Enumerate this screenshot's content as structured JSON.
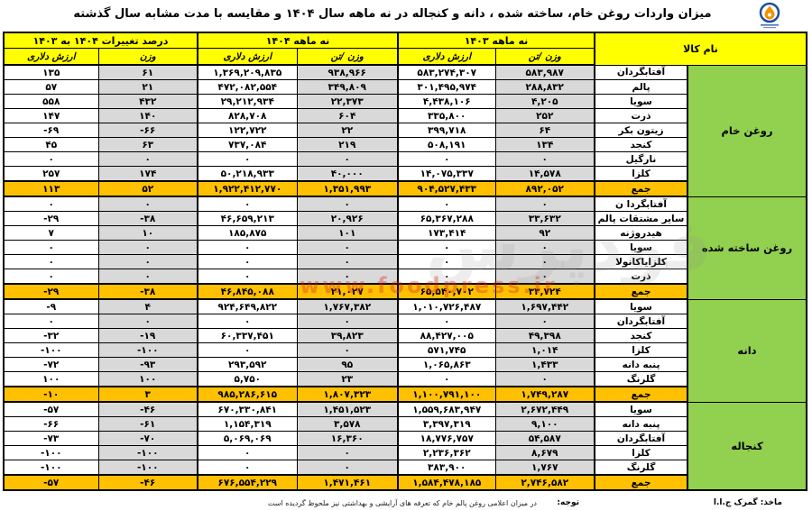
{
  "title": "میزان واردات روغن خام، ساخته شده ، دانه و کنجاله در نه ماهه سال ۱۴۰۴ و مقایسه با مدت مشابه سال گذشته",
  "watermark": {
    "word": "فودپرس",
    "url": "www.foodpress.ir"
  },
  "table": {
    "header": {
      "name_col": "نام کالا",
      "groups": [
        {
          "label": "نه ماهه ۱۴۰۳",
          "sub": [
            "وزن /تن",
            "ارزش دلاری"
          ]
        },
        {
          "label": "نه ماهه ۱۴۰۴",
          "sub": [
            "وزن /تن",
            "ارزش دلاری"
          ]
        },
        {
          "label": "درصد تغییرات ۱۴۰۴ به ۱۴۰۳",
          "sub": [
            "وزن",
            "ارزش دلاری"
          ]
        }
      ]
    },
    "columns_meaning": [
      "وزن تن ۱۴۰۳",
      "ارزش دلاری ۱۴۰۳",
      "وزن تن ۱۴۰۴",
      "ارزش دلاری ۱۴۰۴",
      "درصد تغییرات وزن",
      "درصد تغییرات ارزش دلاری"
    ],
    "groups": [
      {
        "category": "روغن خام",
        "rows": [
          {
            "name": "آفتابگردان",
            "cells": [
              "۵۸۳,۹۸۷",
              "۵۸۳,۲۷۴,۳۰۷",
              "۹۳۸,۹۶۶",
              "۱,۳۶۹,۲۰۹,۸۳۵",
              "۶۱",
              "۱۳۵"
            ]
          },
          {
            "name": "پالم",
            "cells": [
              "۲۸۸,۸۳۲",
              "۳۰۱,۴۹۵,۹۷۴",
              "۳۴۹,۸۰۹",
              "۴۷۲,۰۸۲,۵۵۴",
              "۲۱",
              "۵۷"
            ]
          },
          {
            "name": "سویا",
            "cells": [
              "۴,۲۰۵",
              "۴,۴۳۸,۱۰۶",
              "۲۲,۳۷۳",
              "۲۹,۲۱۲,۹۳۴",
              "۴۳۲",
              "۵۵۸"
            ]
          },
          {
            "name": "ذرت",
            "cells": [
              "۲۵۲",
              "۳۳۵,۸۰۰",
              "۶۰۴",
              "۸۲۸,۷۰۸",
              "۱۴۰",
              "۱۴۷"
            ]
          },
          {
            "name": "زیتون بکر",
            "cells": [
              "۶۴",
              "۳۹۹,۷۱۸",
              "۲۲",
              "۱۲۲,۷۲۲",
              "-۶۶",
              "-۶۹"
            ]
          },
          {
            "name": "کنجد",
            "cells": [
              "۱۳۴",
              "۵۰۸,۱۹۱",
              "۲۱۹",
              "۷۳۷,۰۸۴",
              "۶۳",
              "۴۵"
            ]
          },
          {
            "name": "نارگیل",
            "cells": [
              "۰",
              "۰",
              "۰",
              "۰",
              "۰",
              "۰"
            ]
          },
          {
            "name": "کلزا",
            "cells": [
              "۱۴,۵۷۸",
              "۱۴,۰۷۵,۳۳۷",
              "۴۰,۰۰۰",
              "۵۰,۲۱۸,۹۳۳",
              "۱۷۴",
              "۲۵۷"
            ]
          },
          {
            "name": "جمع",
            "total": true,
            "cells": [
              "۸۹۲,۰۵۲",
              "۹۰۴,۵۲۷,۴۳۳",
              "۱,۳۵۱,۹۹۳",
              "۱,۹۲۲,۴۱۲,۷۷۰",
              "۵۲",
              "۱۱۳"
            ]
          }
        ]
      },
      {
        "category": "روغن ساخته شده",
        "rows": [
          {
            "name": "آفتابگردا ن",
            "cells": [
              "۰",
              "۰",
              "۰",
              "۰",
              "۰",
              "۰"
            ]
          },
          {
            "name": "سایر مشتقات پالم",
            "cells": [
              "۳۳,۶۳۲",
              "۶۵,۳۶۷,۲۸۸",
              "۲۰,۹۲۶",
              "۴۶,۶۵۹,۲۱۳",
              "-۳۸",
              "-۲۹"
            ]
          },
          {
            "name": "هیدروژنه",
            "cells": [
              "۹۲",
              "۱۷۳,۴۱۴",
              "۱۰۱",
              "۱۸۵,۸۷۵",
              "۱۰",
              "۷"
            ]
          },
          {
            "name": "سویا",
            "cells": [
              "۰",
              "۰",
              "۰",
              "۰",
              "۰",
              "۰"
            ]
          },
          {
            "name": "کلزایاکانولا",
            "cells": [
              "۰",
              "۰",
              "۰",
              "۰",
              "۰",
              "۰"
            ]
          },
          {
            "name": "ذرت",
            "cells": [
              "۰",
              "۰",
              "۰",
              "۰",
              "۰",
              "۰"
            ]
          },
          {
            "name": "جمع",
            "total": true,
            "cells": [
              "۳۳,۷۲۴",
              "۶۵,۵۴۰,۷۰۲",
              "۲۱,۰۲۷",
              "۴۶,۸۴۵,۰۸۸",
              "-۳۸",
              "-۲۹"
            ]
          }
        ]
      },
      {
        "category": "دانه",
        "rows": [
          {
            "name": "سویا",
            "cells": [
              "۱,۶۹۷,۴۴۲",
              "۱,۰۱۰,۷۲۶,۴۸۷",
              "۱,۷۶۷,۳۸۲",
              "۹۲۴,۶۴۹,۸۲۲",
              "۴",
              "-۹"
            ]
          },
          {
            "name": "آفتابگردان",
            "cells": [
              "۰",
              "۰",
              "۰",
              "۰",
              "۰",
              "۰"
            ]
          },
          {
            "name": "کنجد",
            "cells": [
              "۴۹,۳۹۸",
              "۸۸,۴۲۷,۰۰۵",
              "۳۹,۸۲۳",
              "۶۰,۳۳۷,۴۵۱",
              "-۱۹",
              "-۳۲"
            ]
          },
          {
            "name": "کلزا",
            "cells": [
              "۱,۰۱۴",
              "۵۷۱,۷۴۵",
              "۰",
              "۰",
              "-۱۰۰",
              "-۱۰۰"
            ]
          },
          {
            "name": "پنبه دانه",
            "cells": [
              "۱,۴۳۳",
              "۱,۰۶۵,۸۶۳",
              "۹۵",
              "۲۹۳,۵۹۲",
              "-۹۳",
              "-۷۲"
            ]
          },
          {
            "name": "گلرنگ",
            "cells": [
              "۰",
              "۰",
              "۲۳",
              "۵,۷۵۰",
              "۱۰۰",
              "۱۰۰"
            ]
          },
          {
            "name": "جمع",
            "total": true,
            "cells": [
              "۱,۷۴۹,۲۸۷",
              "۱,۱۰۰,۷۹۱,۱۰۰",
              "۱,۸۰۷,۳۲۳",
              "۹۸۵,۲۸۶,۶۱۵",
              "۳",
              "-۱۰"
            ]
          }
        ]
      },
      {
        "category": "کنجاله",
        "rows": [
          {
            "name": "سویا",
            "cells": [
              "۲,۶۷۲,۴۴۹",
              "۱,۵۵۹,۶۸۳,۹۴۷",
              "۱,۴۵۱,۵۲۳",
              "۶۷۰,۳۳۰,۸۴۱",
              "-۴۶",
              "-۵۷"
            ]
          },
          {
            "name": "پنبه دانه",
            "cells": [
              "۹,۱۰۰",
              "۳,۳۹۷,۳۱۹",
              "۳,۵۷۸",
              "۱,۱۵۴,۳۱۹",
              "-۶۱",
              "-۶۶"
            ]
          },
          {
            "name": "آفتابگردان",
            "cells": [
              "۵۴,۵۸۷",
              "۱۸,۷۷۶,۷۵۷",
              "۱۶,۳۶۰",
              "۵,۰۶۹,۰۶۹",
              "-۷۰",
              "-۷۳"
            ]
          },
          {
            "name": "کلزا",
            "cells": [
              "۸,۶۷۹",
              "۲,۲۳۶,۳۶۲",
              "۰",
              "۰",
              "-۱۰۰",
              "-۱۰۰"
            ]
          },
          {
            "name": "گلرنگ",
            "cells": [
              "۱,۷۶۷",
              "۳۸۳,۹۰۰",
              "۰",
              "۰",
              "-۱۰۰",
              "-۱۰۰"
            ]
          },
          {
            "name": "جمع",
            "total": true,
            "cells": [
              "۲,۷۴۶,۵۸۲",
              "۱,۵۸۴,۴۷۸,۱۸۵",
              "۱,۴۷۱,۴۶۱",
              "۶۷۶,۵۵۴,۲۲۹",
              "-۴۶",
              "-۵۷"
            ]
          }
        ]
      }
    ]
  },
  "footer": {
    "source": "ماخذ: گمرک ج.ا.ا",
    "note_label": "توجه:",
    "note": "در میزان اعلامی روغن پالم خام که تعرفه های آرایشی و بهداشتی نیز ملحوظ گردیده است"
  },
  "colors": {
    "header_yellow": "#FFFF00",
    "total_orange": "#FFC000",
    "category_green": "#92D050",
    "weight_gray": "#D9D9D9",
    "border_black": "#000000"
  }
}
